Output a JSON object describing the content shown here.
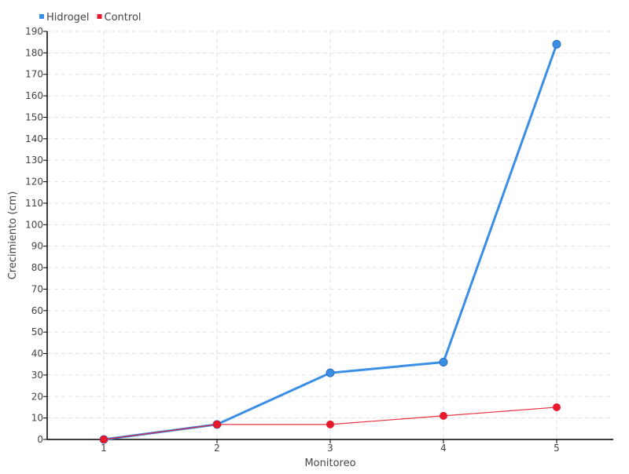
{
  "chart_data": {
    "type": "line",
    "title": "",
    "xlabel": "Monitoreo",
    "ylabel": "Crecimiento (cm)",
    "categories": [
      "1",
      "2",
      "3",
      "4",
      "5"
    ],
    "ylim": [
      0,
      190
    ],
    "yticks": [
      0,
      10,
      20,
      30,
      40,
      50,
      60,
      70,
      80,
      90,
      100,
      110,
      120,
      130,
      140,
      150,
      160,
      170,
      180,
      190
    ],
    "grid": true,
    "legend": "top-left",
    "series": [
      {
        "name": "Hidrogel",
        "color": "#3a8ee6",
        "values": [
          0,
          7,
          31,
          36,
          184
        ]
      },
      {
        "name": "Control",
        "color": "#e8192c",
        "values": [
          0,
          7,
          7,
          11,
          15
        ]
      }
    ]
  }
}
